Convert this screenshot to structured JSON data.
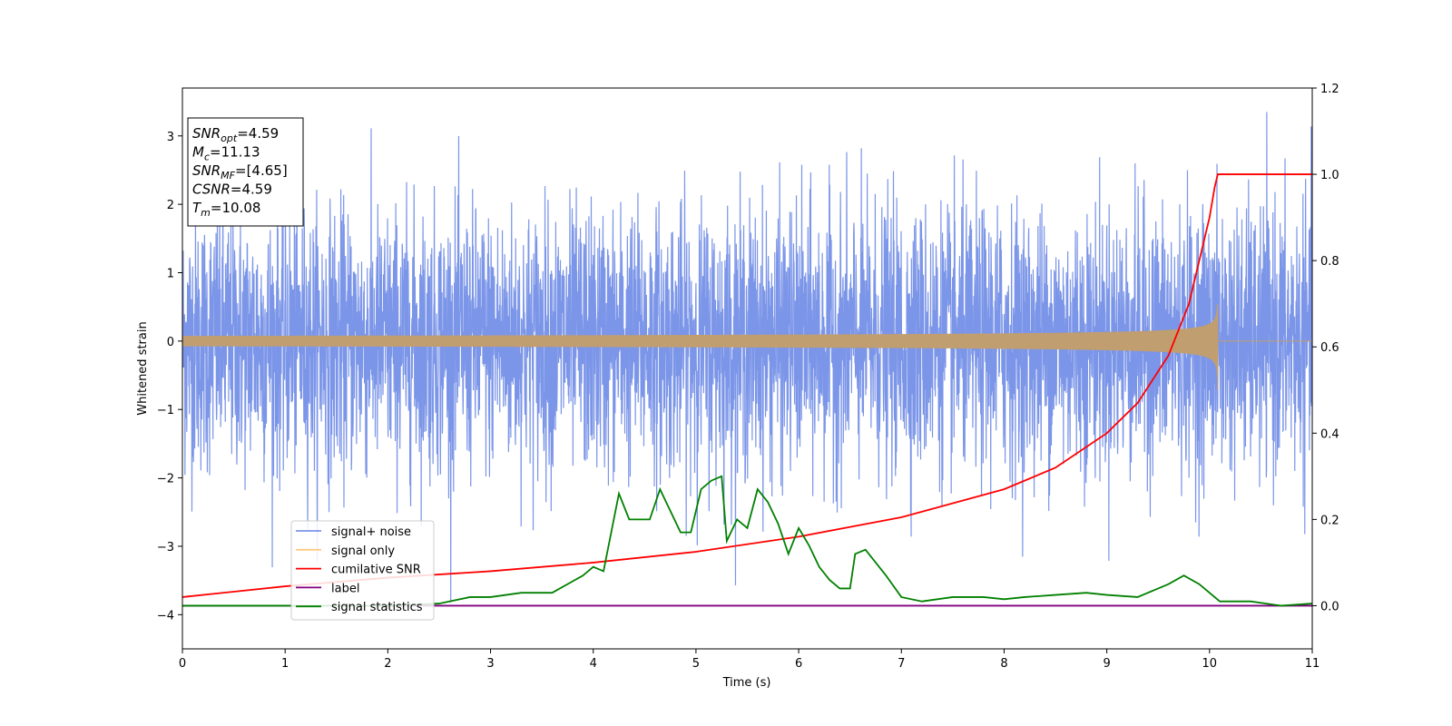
{
  "chart_data": {
    "type": "line",
    "xlabel": "Time (s)",
    "ylabel": "Whitened strain",
    "xlim": [
      0,
      11
    ],
    "ylim_left": [
      -4.5,
      3.7
    ],
    "ylim_right": [
      -0.1,
      1.2
    ],
    "x_ticks": [
      0,
      1,
      2,
      3,
      4,
      5,
      6,
      7,
      8,
      9,
      10,
      11
    ],
    "y_ticks_left": [
      -4,
      -3,
      -2,
      -1,
      0,
      1,
      2,
      3
    ],
    "y_ticks_right": [
      "0.0",
      "0.2",
      "0.4",
      "0.6",
      "0.8",
      "1.0",
      "1.2"
    ],
    "grid": false,
    "legend_position": "lower-left",
    "stats_box": [
      {
        "sym": "SNR",
        "sub": "opt",
        "value": "=4.59"
      },
      {
        "sym": "M",
        "sub": "c",
        "value": "=11.13"
      },
      {
        "sym": "SNR",
        "sub": "MF",
        "value": "=[4.65]"
      },
      {
        "sym": "CSNR",
        "sub": "",
        "value": "=4.59"
      },
      {
        "sym": "T",
        "sub": "m",
        "value": "=10.08"
      }
    ],
    "series": [
      {
        "name": "signal+ noise",
        "axis": "left",
        "color": "#7b95e8",
        "kind": "noise",
        "amplitude_range": [
          -4.2,
          3.35
        ]
      },
      {
        "name": "signal only",
        "axis": "left",
        "color": "#c19e6f",
        "kind": "chirp",
        "merger_time": 10.08,
        "peak_amplitude": 0.6
      },
      {
        "name": "cumilative SNR",
        "axis": "right",
        "color": "#ff0000",
        "x": [
          0,
          1,
          2,
          3,
          4,
          5,
          6,
          7,
          8,
          8.5,
          9,
          9.3,
          9.6,
          9.8,
          9.9,
          10.0,
          10.05,
          10.08,
          11
        ],
        "y": [
          0.02,
          0.045,
          0.065,
          0.08,
          0.1,
          0.125,
          0.16,
          0.205,
          0.27,
          0.32,
          0.4,
          0.47,
          0.58,
          0.7,
          0.8,
          0.9,
          0.97,
          1.0,
          1.0
        ]
      },
      {
        "name": "label",
        "axis": "right",
        "color": "#800080",
        "x": [
          0,
          11
        ],
        "y": [
          0,
          0
        ]
      },
      {
        "name": "signal statistics",
        "axis": "right",
        "color": "#008000",
        "x": [
          0,
          1,
          2,
          2.5,
          2.8,
          3.0,
          3.3,
          3.6,
          3.9,
          4.0,
          4.1,
          4.25,
          4.35,
          4.45,
          4.55,
          4.65,
          4.75,
          4.85,
          4.95,
          5.05,
          5.15,
          5.25,
          5.3,
          5.4,
          5.5,
          5.6,
          5.7,
          5.8,
          5.9,
          6.0,
          6.1,
          6.2,
          6.3,
          6.4,
          6.5,
          6.55,
          6.65,
          6.75,
          6.85,
          7.0,
          7.2,
          7.5,
          7.8,
          8.0,
          8.2,
          8.5,
          8.8,
          9.0,
          9.3,
          9.6,
          9.75,
          9.9,
          10.1,
          10.4,
          10.7,
          11
        ],
        "y": [
          0,
          0,
          0,
          0.005,
          0.02,
          0.02,
          0.03,
          0.03,
          0.07,
          0.09,
          0.08,
          0.26,
          0.2,
          0.2,
          0.2,
          0.27,
          0.22,
          0.17,
          0.17,
          0.27,
          0.29,
          0.3,
          0.15,
          0.2,
          0.18,
          0.27,
          0.24,
          0.19,
          0.12,
          0.18,
          0.14,
          0.09,
          0.06,
          0.04,
          0.04,
          0.12,
          0.13,
          0.1,
          0.07,
          0.02,
          0.01,
          0.02,
          0.02,
          0.015,
          0.02,
          0.025,
          0.03,
          0.025,
          0.02,
          0.05,
          0.07,
          0.05,
          0.01,
          0.01,
          0,
          0.005
        ]
      }
    ]
  }
}
